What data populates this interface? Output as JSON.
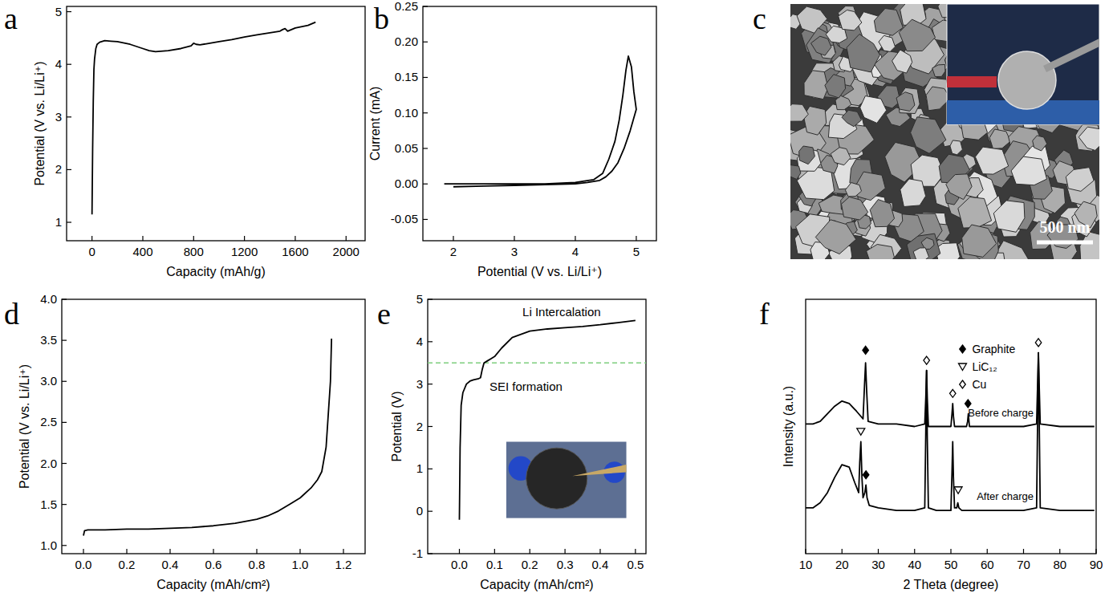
{
  "chart_data": [
    {
      "panel": "a",
      "type": "line",
      "x_label": "Capacity (mAh/g)",
      "y_label": "Potential (V vs. Li/Li⁺)",
      "xlim": [
        -200,
        2150
      ],
      "ylim": [
        0.65,
        5.1
      ],
      "xticks": [
        0,
        400,
        800,
        1200,
        1600,
        2000
      ],
      "yticks": [
        1,
        2,
        3,
        4,
        5
      ],
      "color": "#000000",
      "series": [
        {
          "color": "#000000",
          "x": [
            0,
            5,
            10,
            15,
            20,
            30,
            40,
            60,
            100,
            150,
            200,
            300,
            400,
            450,
            500,
            600,
            700,
            780,
            800,
            820,
            850,
            900,
            1000,
            1100,
            1200,
            1300,
            1400,
            1480,
            1500,
            1520,
            1540,
            1600,
            1700,
            1760
          ],
          "values": [
            1.15,
            2.4,
            3.3,
            3.9,
            4.1,
            4.3,
            4.38,
            4.42,
            4.45,
            4.44,
            4.43,
            4.38,
            4.3,
            4.26,
            4.24,
            4.26,
            4.3,
            4.35,
            4.4,
            4.38,
            4.37,
            4.39,
            4.43,
            4.47,
            4.52,
            4.56,
            4.6,
            4.63,
            4.66,
            4.68,
            4.63,
            4.69,
            4.74,
            4.8
          ]
        }
      ]
    },
    {
      "panel": "b",
      "type": "line",
      "x_label": "Potential (V vs. Li/Li⁺)",
      "y_label": "Current (mA)",
      "xlim": [
        1.5,
        5.33
      ],
      "ylim": [
        -0.08,
        0.25
      ],
      "xticks": [
        2,
        3,
        4,
        5
      ],
      "yticks": [
        -0.05,
        {
          "value": 0,
          "label": "0.00"
        },
        0.05,
        {
          "value": 0.1,
          "label": "0.10"
        },
        0.15,
        {
          "value": 0.2,
          "label": "0.20"
        },
        0.25
      ],
      "color": "#000000",
      "series": [
        {
          "color": "#000000",
          "x": [
            1.85,
            2.5,
            3,
            3.5,
            4,
            4.3,
            4.45,
            4.55,
            4.65,
            4.72,
            4.78,
            4.83,
            4.87,
            4.92,
            4.96,
            5.0,
            4.95,
            4.9,
            4.8,
            4.7,
            4.6,
            4.5,
            4.4,
            4.2,
            4.0,
            3.5,
            3,
            2.5,
            2.0
          ],
          "values": [
            0,
            0,
            0,
            0,
            0.002,
            0.006,
            0.015,
            0.035,
            0.06,
            0.09,
            0.125,
            0.16,
            0.18,
            0.165,
            0.13,
            0.105,
            0.09,
            0.075,
            0.05,
            0.03,
            0.018,
            0.01,
            0.005,
            0.002,
            0,
            -0.001,
            -0.002,
            -0.003,
            -0.004
          ]
        }
      ]
    },
    {
      "panel": "d",
      "type": "line",
      "x_label": "Capacity (mAh/cm²)",
      "y_label": "Potential (V vs. Li/Li⁺)",
      "xlim": [
        -0.1,
        1.3
      ],
      "ylim": [
        0.9,
        4.0
      ],
      "xticks": [
        {
          "value": 0,
          "label": "0.0"
        },
        0.2,
        0.4,
        0.6,
        0.8,
        {
          "value": 1,
          "label": "1.0"
        },
        1.2
      ],
      "yticks": [
        {
          "value": 1,
          "label": "1.0"
        },
        1.5,
        {
          "value": 2,
          "label": "2.0"
        },
        2.5,
        {
          "value": 3,
          "label": "3.0"
        },
        3.5,
        {
          "value": 4,
          "label": "4.0"
        }
      ],
      "color": "#000000",
      "series": [
        {
          "color": "#000000",
          "x": [
            0,
            0.005,
            0.02,
            0.1,
            0.2,
            0.3,
            0.4,
            0.5,
            0.6,
            0.7,
            0.8,
            0.85,
            0.9,
            0.95,
            1.0,
            1.05,
            1.08,
            1.1,
            1.12,
            1.13,
            1.14,
            1.145
          ],
          "values": [
            1.12,
            1.18,
            1.19,
            1.19,
            1.2,
            1.2,
            1.21,
            1.22,
            1.24,
            1.27,
            1.32,
            1.36,
            1.42,
            1.5,
            1.58,
            1.7,
            1.8,
            1.9,
            2.2,
            2.6,
            3.0,
            3.52
          ]
        }
      ]
    },
    {
      "panel": "e",
      "type": "line",
      "x_label": "Capacity (mAh/cm²)",
      "y_label": "Potential (V)",
      "xlim": [
        -0.09,
        0.53
      ],
      "ylim": [
        -1,
        5
      ],
      "xticks": [
        {
          "value": 0,
          "label": "0.0"
        },
        0.1,
        0.2,
        0.3,
        0.4,
        0.5
      ],
      "yticks": [
        -1,
        0,
        1,
        2,
        3,
        4,
        5
      ],
      "color": "#000000",
      "hline": 3.5,
      "annotations": [
        "SEI formation",
        "Li Intercalation"
      ],
      "series": [
        {
          "color": "#000000",
          "x": [
            0,
            0.002,
            0.005,
            0.01,
            0.02,
            0.03,
            0.04,
            0.05,
            0.055,
            0.06,
            0.065,
            0.07,
            0.08,
            0.09,
            0.1,
            0.12,
            0.15,
            0.2,
            0.25,
            0.3,
            0.35,
            0.4,
            0.45,
            0.5
          ],
          "values": [
            -0.2,
            1.5,
            2.5,
            2.8,
            3.0,
            3.07,
            3.1,
            3.12,
            3.13,
            3.15,
            3.35,
            3.5,
            3.55,
            3.6,
            3.65,
            3.85,
            4.1,
            4.25,
            4.3,
            4.33,
            4.36,
            4.4,
            4.45,
            4.5
          ]
        }
      ]
    },
    {
      "panel": "f",
      "type": "line",
      "x_label": "2 Theta (degree)",
      "y_label": "Intensity (a.u.)",
      "xlim": [
        10,
        90
      ],
      "ylim": [
        0,
        100
      ],
      "xticks": [
        10,
        20,
        30,
        40,
        50,
        60,
        70,
        80,
        90
      ],
      "tick_labels": "x",
      "legend": "top",
      "color": "#000000",
      "series": [
        {
          "name": "Before charge",
          "color": "#000000",
          "x": [
            10,
            12,
            14,
            16,
            18,
            20,
            22,
            24,
            25.8,
            26.2,
            26.5,
            26.8,
            27.2,
            30,
            35,
            40,
            42.8,
            43.1,
            43.3,
            43.5,
            43.8,
            46,
            50,
            50.3,
            50.5,
            50.7,
            51,
            54.3,
            54.6,
            54.8,
            55.1,
            60,
            65,
            70,
            73.6,
            73.9,
            74.1,
            74.3,
            74.6,
            80,
            85,
            89.5
          ],
          "values": [
            51,
            51,
            52,
            55,
            58,
            60,
            59,
            56,
            53,
            66,
            75,
            64,
            52,
            51,
            51,
            50,
            51,
            62,
            72,
            61,
            50,
            50,
            50,
            55,
            59,
            54,
            50,
            50,
            52,
            55,
            50,
            50,
            50,
            50,
            51,
            68,
            79,
            67,
            51,
            50,
            50,
            50
          ]
        },
        {
          "name": "After charge",
          "color": "#000000",
          "x": [
            10,
            12,
            14,
            16,
            18,
            20,
            22,
            23.5,
            24.6,
            24.9,
            25.2,
            25.5,
            25.8,
            26.3,
            26.6,
            26.9,
            27.5,
            30,
            35,
            40,
            42.8,
            43.1,
            43.3,
            43.5,
            43.8,
            46,
            50,
            50.3,
            50.5,
            50.7,
            51,
            51.6,
            51.9,
            52.2,
            53,
            60,
            65,
            70,
            73.6,
            73.9,
            74.1,
            74.3,
            74.6,
            80,
            85,
            89.5
          ],
          "values": [
            18,
            18,
            20,
            24,
            30,
            35,
            34,
            28,
            24,
            36,
            44,
            30,
            22,
            24,
            27,
            22,
            19,
            18,
            17,
            17,
            18,
            50,
            72,
            45,
            18,
            17,
            17,
            32,
            44,
            30,
            18,
            18,
            20,
            18,
            17,
            17,
            17,
            17,
            18,
            55,
            79,
            55,
            18,
            17,
            17,
            17
          ]
        }
      ],
      "phases": [
        {
          "name": "Graphite",
          "marker": "filled-diamond",
          "x": [
            26.5,
            54.7,
            26.6
          ],
          "y": [
            80,
            59,
            31
          ]
        },
        {
          "name": "LiC₁₂",
          "marker": "open-triangle",
          "x": [
            25.2,
            52.0
          ],
          "y": [
            48,
            25
          ]
        },
        {
          "name": "Cu",
          "marker": "open-diamond",
          "x": [
            43.3,
            50.5,
            74.1
          ],
          "y": [
            76,
            63,
            83
          ]
        }
      ]
    }
  ],
  "images": [
    {
      "panel": "c",
      "scale_bar": "500 nm"
    }
  ]
}
